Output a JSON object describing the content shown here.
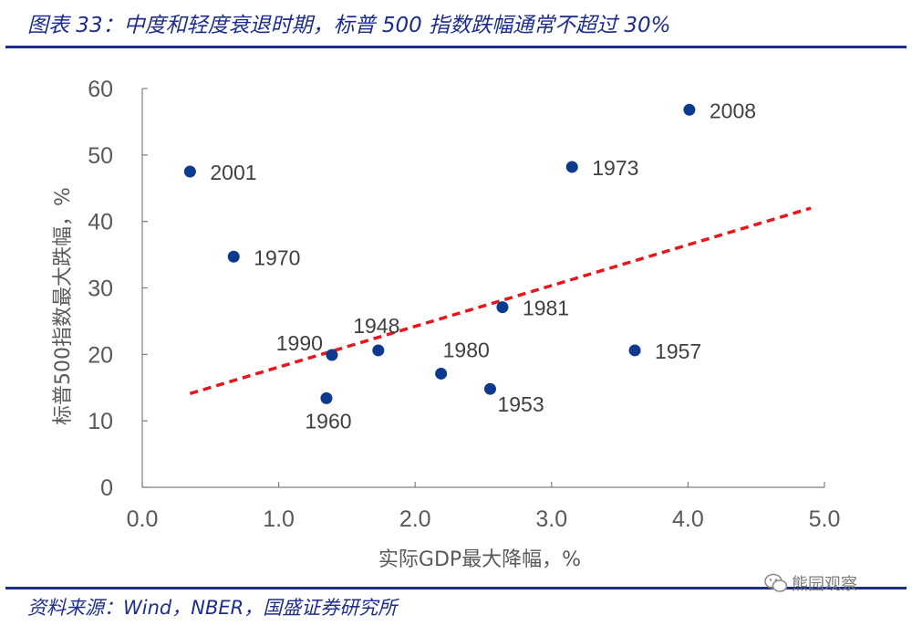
{
  "figure": {
    "title": "图表 33：中度和轻度衰退时期，标普 500 指数跌幅通常不超过 30%",
    "source": "资料来源：Wind，NBER，国盛证券研究所",
    "watermark": "熊园观察"
  },
  "colors": {
    "brand": "#1d2d8f",
    "point": "#0d3a8f",
    "trendline": "#e8161c",
    "axis": "#7f7f7f",
    "text": "#595959"
  },
  "chart_data": {
    "type": "scatter",
    "xlabel": "实际GDP最大降幅，%",
    "ylabel": "标普500指数最大跌幅，%",
    "xlim": [
      0,
      5
    ],
    "ylim": [
      0,
      60
    ],
    "x_ticks": [
      "0.0",
      "1.0",
      "2.0",
      "3.0",
      "4.0",
      "5.0"
    ],
    "y_ticks": [
      "0",
      "10",
      "20",
      "30",
      "40",
      "50",
      "60"
    ],
    "x_tick_values": [
      0,
      1,
      2,
      3,
      4,
      5
    ],
    "y_tick_values": [
      0,
      10,
      20,
      30,
      40,
      50,
      60
    ],
    "grid": false,
    "points": [
      {
        "label": "2001",
        "x": 0.35,
        "y": 47.5,
        "label_pos": "right"
      },
      {
        "label": "1970",
        "x": 0.67,
        "y": 34.7,
        "label_pos": "right"
      },
      {
        "label": "1990",
        "x": 1.39,
        "y": 19.9,
        "label_pos": "left"
      },
      {
        "label": "1960",
        "x": 1.35,
        "y": 13.4,
        "label_pos": "below"
      },
      {
        "label": "1948",
        "x": 1.73,
        "y": 20.6,
        "label_pos": "above"
      },
      {
        "label": "1980",
        "x": 2.19,
        "y": 17.1,
        "label_pos": "upper-right"
      },
      {
        "label": "1953",
        "x": 2.55,
        "y": 14.8,
        "label_pos": "lower-right"
      },
      {
        "label": "1981",
        "x": 2.64,
        "y": 27.1,
        "label_pos": "right"
      },
      {
        "label": "1973",
        "x": 3.15,
        "y": 48.2,
        "label_pos": "right"
      },
      {
        "label": "1957",
        "x": 3.61,
        "y": 20.6,
        "label_pos": "right"
      },
      {
        "label": "2008",
        "x": 4.01,
        "y": 56.8,
        "label_pos": "right"
      }
    ],
    "trendline": {
      "style": "dashed",
      "x": [
        0.35,
        4.9
      ],
      "y": [
        14.1,
        42.0
      ]
    }
  }
}
